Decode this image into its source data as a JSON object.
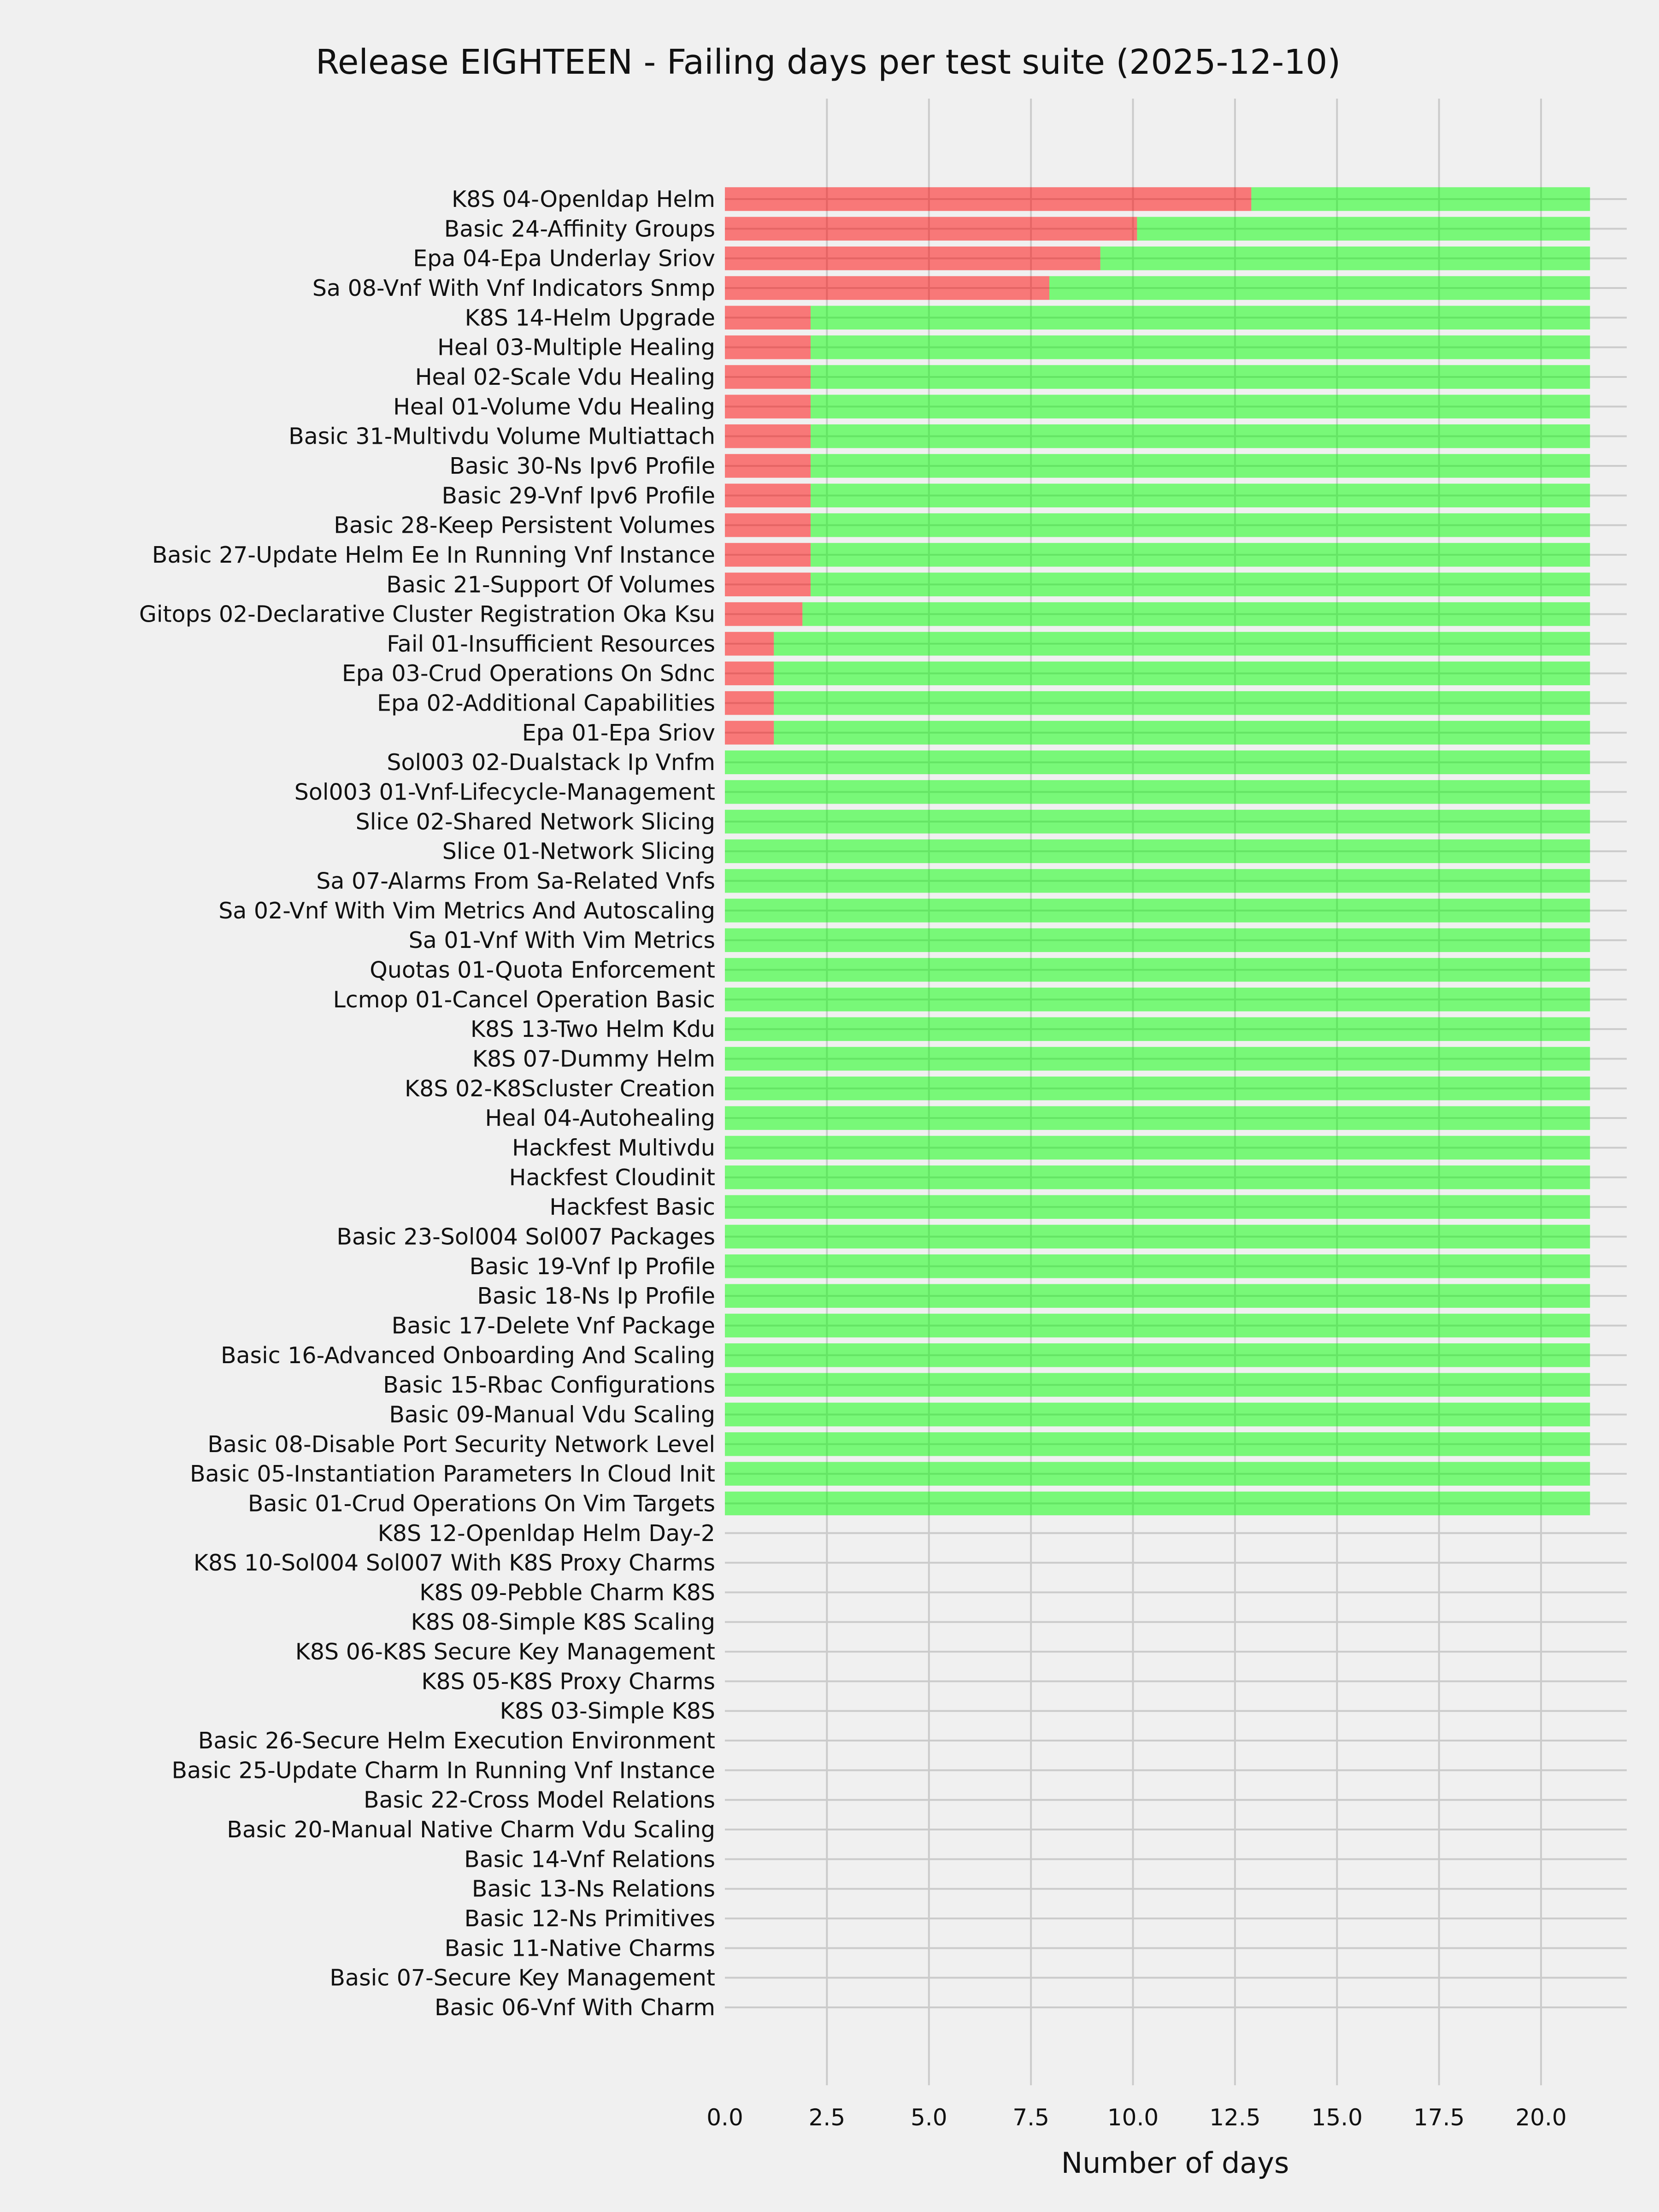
{
  "chart_data": {
    "type": "bar",
    "orientation": "horizontal",
    "stacked": true,
    "title": "Release EIGHTEEN - Failing days per test suite (2025-12-10)",
    "xlabel": "Number of days",
    "ylabel": "",
    "xlim": [
      0,
      22.1
    ],
    "xticks": [
      "0.0",
      "2.5",
      "5.0",
      "7.5",
      "10.0",
      "12.5",
      "15.0",
      "17.5",
      "20.0"
    ],
    "grid": true,
    "legend": "none",
    "colors": {
      "failing": "#ff0000",
      "passing": "#00ff00",
      "background": "#f0f0f0",
      "grid": "#cbcbcb"
    },
    "categories": [
      "K8S 04-Openldap Helm",
      "Basic 24-Affinity Groups",
      "Epa 04-Epa Underlay Sriov",
      "Sa 08-Vnf With Vnf Indicators Snmp",
      "K8S 14-Helm Upgrade",
      "Heal 03-Multiple Healing",
      "Heal 02-Scale Vdu Healing",
      "Heal 01-Volume Vdu Healing",
      "Basic 31-Multivdu Volume Multiattach",
      "Basic 30-Ns Ipv6 Profile",
      "Basic 29-Vnf Ipv6 Profile",
      "Basic 28-Keep Persistent Volumes",
      "Basic 27-Update Helm Ee In Running Vnf Instance",
      "Basic 21-Support Of Volumes",
      "Gitops 02-Declarative Cluster Registration Oka Ksu",
      "Fail 01-Insufficient Resources",
      "Epa 03-Crud Operations On Sdnc",
      "Epa 02-Additional Capabilities",
      "Epa 01-Epa Sriov",
      "Sol003 02-Dualstack Ip Vnfm",
      "Sol003 01-Vnf-Lifecycle-Management",
      "Slice 02-Shared Network Slicing",
      "Slice 01-Network Slicing",
      "Sa 07-Alarms From Sa-Related Vnfs",
      "Sa 02-Vnf With Vim Metrics And Autoscaling",
      "Sa 01-Vnf With Vim Metrics",
      "Quotas 01-Quota Enforcement",
      "Lcmop 01-Cancel Operation Basic",
      "K8S 13-Two Helm Kdu",
      "K8S 07-Dummy Helm",
      "K8S 02-K8Scluster Creation",
      "Heal 04-Autohealing",
      "Hackfest Multivdu",
      "Hackfest Cloudinit",
      "Hackfest Basic",
      "Basic 23-Sol004 Sol007 Packages",
      "Basic 19-Vnf Ip Profile",
      "Basic 18-Ns Ip Profile",
      "Basic 17-Delete Vnf Package",
      "Basic 16-Advanced Onboarding And Scaling",
      "Basic 15-Rbac Configurations",
      "Basic 09-Manual Vdu Scaling",
      "Basic 08-Disable Port Security Network Level",
      "Basic 05-Instantiation Parameters In Cloud Init",
      "Basic 01-Crud Operations On Vim Targets",
      "K8S 12-Openldap Helm Day-2",
      "K8S 10-Sol004 Sol007 With K8S Proxy Charms",
      "K8S 09-Pebble Charm K8S",
      "K8S 08-Simple K8S Scaling",
      "K8S 06-K8S Secure Key Management",
      "K8S 05-K8S Proxy Charms",
      "K8S 03-Simple K8S",
      "Basic 26-Secure Helm Execution Environment",
      "Basic 25-Update Charm In Running Vnf Instance",
      "Basic 22-Cross Model Relations",
      "Basic 20-Manual Native Charm Vdu Scaling",
      "Basic 14-Vnf Relations",
      "Basic 13-Ns Relations",
      "Basic 12-Ns Primitives",
      "Basic 11-Native Charms",
      "Basic 07-Secure Key Management",
      "Basic 06-Vnf With Charm"
    ],
    "series": [
      {
        "key": "failing",
        "values": [
          12.9,
          10.1,
          9.2,
          7.95,
          2.1,
          2.1,
          2.1,
          2.1,
          2.1,
          2.1,
          2.1,
          2.1,
          2.1,
          2.1,
          1.9,
          1.2,
          1.2,
          1.2,
          1.2,
          0,
          0,
          0,
          0,
          0,
          0,
          0,
          0,
          0,
          0,
          0,
          0,
          0,
          0,
          0,
          0,
          0,
          0,
          0,
          0,
          0,
          0,
          0,
          0,
          0,
          0,
          0,
          0,
          0,
          0,
          0,
          0,
          0,
          0,
          0,
          0,
          0,
          0,
          0,
          0,
          0,
          0,
          0
        ]
      },
      {
        "key": "passing",
        "values": [
          8.3,
          11.1,
          12.0,
          13.25,
          19.1,
          19.1,
          19.1,
          19.1,
          19.1,
          19.1,
          19.1,
          19.1,
          19.1,
          19.1,
          19.3,
          20.0,
          20.0,
          20.0,
          20.0,
          21.2,
          21.2,
          21.2,
          21.2,
          21.2,
          21.2,
          21.2,
          21.2,
          21.2,
          21.2,
          21.2,
          21.2,
          21.2,
          21.2,
          21.2,
          21.2,
          21.2,
          21.2,
          21.2,
          21.2,
          21.2,
          21.2,
          21.2,
          21.2,
          21.2,
          21.2,
          0,
          0,
          0,
          0,
          0,
          0,
          0,
          0,
          0,
          0,
          0,
          0,
          0,
          0,
          0,
          0,
          0
        ]
      }
    ]
  }
}
